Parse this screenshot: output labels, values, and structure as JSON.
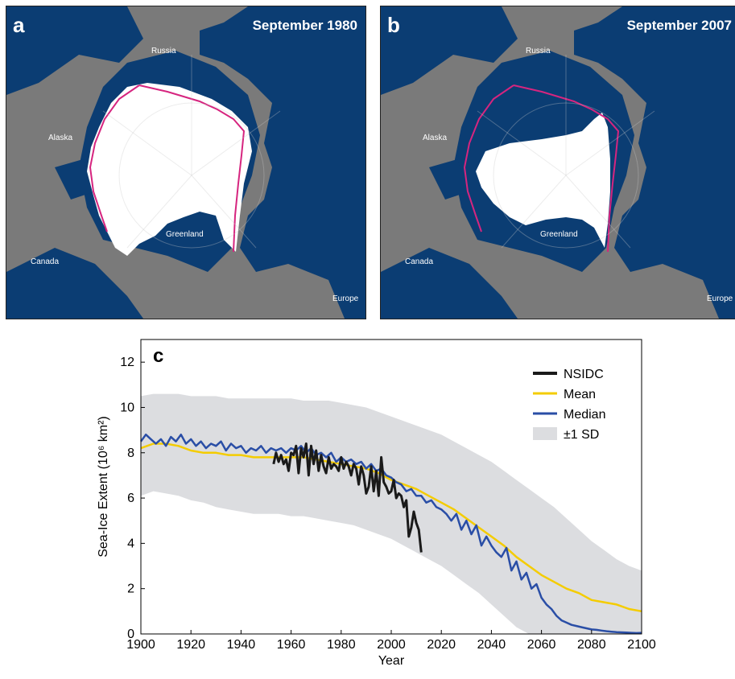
{
  "colors": {
    "ocean": "#0b3d73",
    "land": "#7a7a7a",
    "ice": "#ffffff",
    "median_line": "#d6257f",
    "nsidc": "#1a1a1a",
    "mean": "#f4cc00",
    "median": "#2a4ea6",
    "sd_band": "#dcdde0"
  },
  "panels": [
    {
      "letter": "a",
      "title": "September 1980",
      "places": {
        "russia": "Russia",
        "alaska": "Alaska",
        "greenland": "Greenland",
        "canada": "Canada",
        "europe": "Europe"
      }
    },
    {
      "letter": "b",
      "title": "September 2007",
      "places": {
        "russia": "Russia",
        "alaska": "Alaska",
        "greenland": "Greenland",
        "canada": "Canada",
        "europe": "Europe"
      }
    }
  ],
  "chart_data": {
    "type": "line",
    "panel_letter": "c",
    "xlabel": "Year",
    "ylabel": "Sea-Ice Extent (10⁶ km²)",
    "xlim": [
      1900,
      2100
    ],
    "ylim": [
      0,
      13
    ],
    "xticks": [
      1900,
      1920,
      1940,
      1960,
      1980,
      2000,
      2020,
      2040,
      2060,
      2080,
      2100
    ],
    "yticks": [
      0,
      2,
      4,
      6,
      8,
      10,
      12
    ],
    "grid": false,
    "legend_position": "top-right",
    "legend": [
      "NSIDC",
      "Mean",
      "Median",
      "±1 SD"
    ],
    "series": [
      {
        "name": "NSIDC",
        "x": [
          1953,
          1954,
          1955,
          1956,
          1957,
          1958,
          1959,
          1960,
          1961,
          1962,
          1963,
          1964,
          1965,
          1966,
          1967,
          1968,
          1969,
          1970,
          1971,
          1972,
          1973,
          1974,
          1975,
          1976,
          1977,
          1978,
          1979,
          1980,
          1981,
          1982,
          1983,
          1984,
          1985,
          1986,
          1987,
          1988,
          1989,
          1990,
          1991,
          1992,
          1993,
          1994,
          1995,
          1996,
          1997,
          1998,
          1999,
          2000,
          2001,
          2002,
          2003,
          2004,
          2005,
          2006,
          2007,
          2008,
          2009,
          2010,
          2011,
          2012
        ],
        "y": [
          7.5,
          8.0,
          7.6,
          7.9,
          7.5,
          7.7,
          7.2,
          8.0,
          7.9,
          8.3,
          7.1,
          8.2,
          7.8,
          8.4,
          7.0,
          8.3,
          7.5,
          8.1,
          7.2,
          7.9,
          7.4,
          7.1,
          7.8,
          7.3,
          7.5,
          7.4,
          7.2,
          7.8,
          7.3,
          7.6,
          7.4,
          7.0,
          7.5,
          7.3,
          6.6,
          7.4,
          7.0,
          6.2,
          6.5,
          7.4,
          6.3,
          7.2,
          6.1,
          7.8,
          6.7,
          6.5,
          6.2,
          6.3,
          6.8,
          6.0,
          6.2,
          6.1,
          5.6,
          5.9,
          4.3,
          4.7,
          5.4,
          4.9,
          4.6,
          3.6
        ]
      },
      {
        "name": "Mean",
        "x": [
          1900,
          1905,
          1910,
          1915,
          1920,
          1925,
          1930,
          1935,
          1940,
          1945,
          1950,
          1955,
          1960,
          1965,
          1970,
          1975,
          1980,
          1985,
          1990,
          1995,
          2000,
          2005,
          2010,
          2015,
          2020,
          2025,
          2030,
          2035,
          2040,
          2045,
          2050,
          2055,
          2060,
          2065,
          2070,
          2075,
          2080,
          2085,
          2090,
          2095,
          2100
        ],
        "y": [
          8.2,
          8.4,
          8.4,
          8.3,
          8.1,
          8.0,
          8.0,
          7.9,
          7.9,
          7.8,
          7.8,
          7.8,
          7.8,
          7.8,
          7.7,
          7.6,
          7.5,
          7.4,
          7.3,
          7.1,
          6.8,
          6.6,
          6.4,
          6.1,
          5.8,
          5.5,
          5.1,
          4.7,
          4.3,
          3.9,
          3.4,
          3.0,
          2.6,
          2.3,
          2.0,
          1.8,
          1.5,
          1.4,
          1.3,
          1.1,
          1.0
        ]
      },
      {
        "name": "Median",
        "x": [
          1900,
          1902,
          1904,
          1906,
          1908,
          1910,
          1912,
          1914,
          1916,
          1918,
          1920,
          1922,
          1924,
          1926,
          1928,
          1930,
          1932,
          1934,
          1936,
          1938,
          1940,
          1942,
          1944,
          1946,
          1948,
          1950,
          1952,
          1954,
          1956,
          1958,
          1960,
          1962,
          1964,
          1966,
          1968,
          1970,
          1972,
          1974,
          1976,
          1978,
          1980,
          1982,
          1984,
          1986,
          1988,
          1990,
          1992,
          1994,
          1996,
          1998,
          2000,
          2002,
          2004,
          2006,
          2008,
          2010,
          2012,
          2014,
          2016,
          2018,
          2020,
          2022,
          2024,
          2026,
          2028,
          2030,
          2032,
          2034,
          2036,
          2038,
          2040,
          2042,
          2044,
          2046,
          2048,
          2050,
          2052,
          2054,
          2056,
          2058,
          2060,
          2062,
          2064,
          2066,
          2068,
          2070,
          2072,
          2074,
          2076,
          2078,
          2080,
          2082,
          2084,
          2086,
          2088,
          2090,
          2092,
          2094,
          2096,
          2098,
          2100
        ],
        "y": [
          8.5,
          8.8,
          8.6,
          8.4,
          8.6,
          8.3,
          8.7,
          8.5,
          8.8,
          8.4,
          8.6,
          8.3,
          8.5,
          8.2,
          8.4,
          8.3,
          8.5,
          8.1,
          8.4,
          8.2,
          8.3,
          8.0,
          8.2,
          8.1,
          8.3,
          8.0,
          8.2,
          8.1,
          8.2,
          8.0,
          8.2,
          8.1,
          8.3,
          8.0,
          8.2,
          7.9,
          8.0,
          7.8,
          8.0,
          7.6,
          7.8,
          7.6,
          7.7,
          7.5,
          7.6,
          7.3,
          7.5,
          7.2,
          7.3,
          7.0,
          6.9,
          6.7,
          6.6,
          6.3,
          6.4,
          6.1,
          6.1,
          5.8,
          5.9,
          5.6,
          5.5,
          5.3,
          5.0,
          5.3,
          4.6,
          5.0,
          4.4,
          4.8,
          3.9,
          4.3,
          3.9,
          3.6,
          3.4,
          3.8,
          2.8,
          3.2,
          2.4,
          2.7,
          2.0,
          2.2,
          1.6,
          1.3,
          1.1,
          0.8,
          0.6,
          0.5,
          0.4,
          0.35,
          0.3,
          0.25,
          0.2,
          0.18,
          0.15,
          0.12,
          0.1,
          0.08,
          0.07,
          0.06,
          0.05,
          0.04,
          0.05
        ]
      },
      {
        "name": "±1 SD",
        "x": [
          1900,
          1905,
          1910,
          1915,
          1920,
          1925,
          1930,
          1935,
          1940,
          1945,
          1950,
          1955,
          1960,
          1965,
          1970,
          1975,
          1980,
          1985,
          1990,
          1995,
          2000,
          2005,
          2010,
          2015,
          2020,
          2025,
          2030,
          2035,
          2040,
          2045,
          2050,
          2055,
          2060,
          2065,
          2070,
          2075,
          2080,
          2085,
          2090,
          2095,
          2100
        ],
        "upper": [
          10.5,
          10.6,
          10.6,
          10.6,
          10.5,
          10.5,
          10.5,
          10.4,
          10.4,
          10.4,
          10.4,
          10.4,
          10.4,
          10.3,
          10.3,
          10.3,
          10.2,
          10.1,
          10.0,
          9.8,
          9.6,
          9.4,
          9.2,
          9.0,
          8.8,
          8.5,
          8.2,
          7.9,
          7.6,
          7.2,
          6.8,
          6.4,
          6.0,
          5.6,
          5.1,
          4.6,
          4.1,
          3.7,
          3.3,
          3.0,
          2.8
        ],
        "lower": [
          6.1,
          6.3,
          6.2,
          6.1,
          5.9,
          5.8,
          5.6,
          5.5,
          5.4,
          5.3,
          5.3,
          5.3,
          5.2,
          5.2,
          5.1,
          5.0,
          4.9,
          4.8,
          4.6,
          4.4,
          4.2,
          3.9,
          3.6,
          3.3,
          3.0,
          2.6,
          2.2,
          1.8,
          1.3,
          0.8,
          0.3,
          0.0,
          0.0,
          0.0,
          0.0,
          0.0,
          0.0,
          0.0,
          0.0,
          0.0,
          0.0
        ]
      }
    ]
  }
}
